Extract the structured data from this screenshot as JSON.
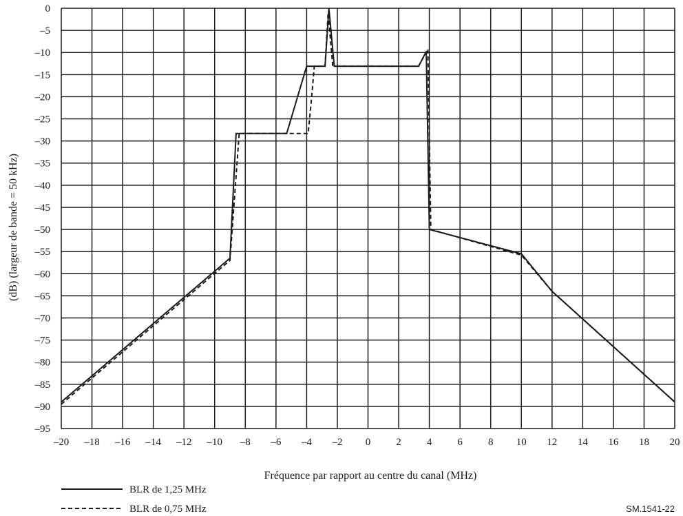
{
  "chart_data": {
    "type": "line",
    "title": "",
    "xlabel": "Fréquence par rapport au centre du canal (MHz)",
    "ylabel": "(dB) (largeur de bande = 50 kHz)",
    "xlim": [
      -20,
      20
    ],
    "ylim": [
      -95,
      0
    ],
    "x_ticks": [
      -20,
      -18,
      -16,
      -14,
      -12,
      -10,
      -8,
      -6,
      -4,
      -2,
      0,
      2,
      4,
      6,
      8,
      10,
      12,
      14,
      16,
      18,
      20
    ],
    "y_ticks": [
      0,
      -5,
      -10,
      -15,
      -20,
      -25,
      -30,
      -35,
      -40,
      -45,
      -50,
      -55,
      -60,
      -65,
      -70,
      -75,
      -80,
      -85,
      -90,
      -95
    ],
    "x_ticklabels": [
      "–20",
      "–18",
      "–16",
      "–14",
      "–12",
      "–10",
      "–8",
      "–6",
      "–4",
      "–2",
      "0",
      "2",
      "4",
      "6",
      "8",
      "10",
      "12",
      "14",
      "16",
      "18",
      "20"
    ],
    "y_ticklabels": [
      "0",
      "–5",
      "–10",
      "–15",
      "–20",
      "–25",
      "–30",
      "–35",
      "–40",
      "–45",
      "–50",
      "–55",
      "–60",
      "–65",
      "–70",
      "–75",
      "–80",
      "–85",
      "–90",
      "–95"
    ],
    "grid": true,
    "legend_position": "bottom-left",
    "figure_id": "SM.1541-22",
    "series": [
      {
        "name": "BLR de 1,25 MHz",
        "style": "solid",
        "color": "#1a1a1a",
        "points": [
          [
            -20,
            -89
          ],
          [
            -9,
            -56.5
          ],
          [
            -8.6,
            -28.3
          ],
          [
            -5.3,
            -28.3
          ],
          [
            -4,
            -13.1
          ],
          [
            -2.8,
            -13.1
          ],
          [
            -2.55,
            0
          ],
          [
            -2.2,
            -13.1
          ],
          [
            3.3,
            -13.1
          ],
          [
            3.8,
            -9.8
          ],
          [
            4,
            -50
          ],
          [
            10,
            -55.5
          ],
          [
            12,
            -64
          ],
          [
            20,
            -89
          ]
        ]
      },
      {
        "name": "BLR de 0,75 MHz",
        "style": "dashed",
        "color": "#1a1a1a",
        "points": [
          [
            -20,
            -89.5
          ],
          [
            -9,
            -57
          ],
          [
            -8.4,
            -28.3
          ],
          [
            -3.9,
            -28.3
          ],
          [
            -3.7,
            -21
          ],
          [
            -3.5,
            -13.1
          ],
          [
            -2.8,
            -13.1
          ],
          [
            -2.6,
            -1
          ],
          [
            -2.3,
            -13.1
          ],
          [
            3.3,
            -13.1
          ],
          [
            3.9,
            -9.2
          ],
          [
            4.1,
            -50
          ],
          [
            10,
            -55.8
          ],
          [
            12,
            -64
          ],
          [
            20,
            -89
          ]
        ]
      }
    ]
  }
}
